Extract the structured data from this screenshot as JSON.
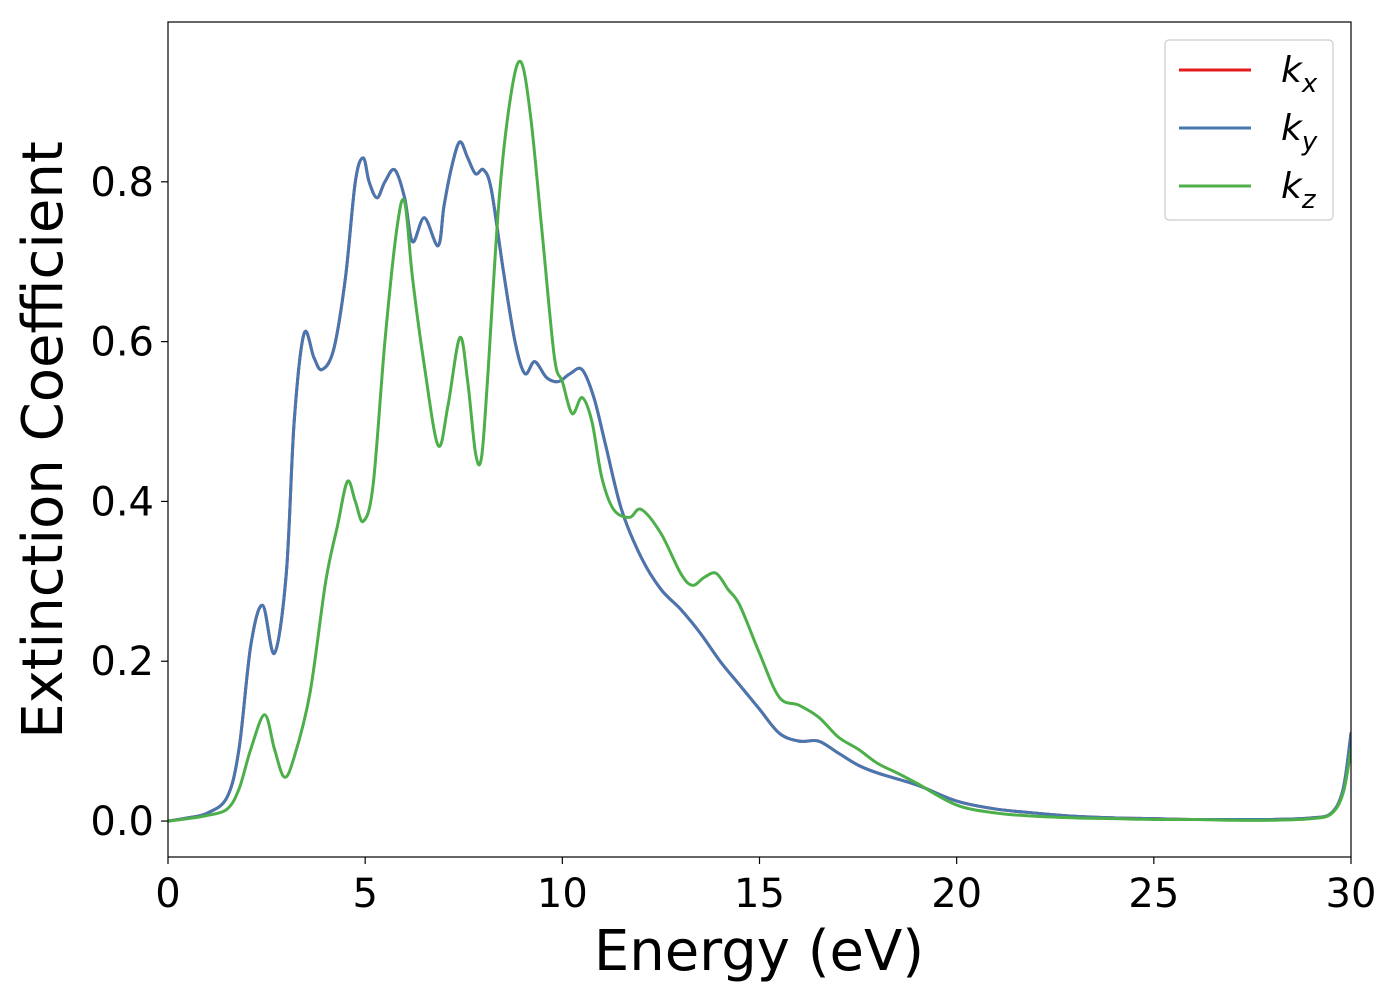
{
  "chart_data": {
    "type": "line",
    "title": "",
    "xlabel": "Energy (eV)",
    "ylabel": "Extinction Coefficient",
    "xlim": [
      0,
      30
    ],
    "ylim": [
      -0.045,
      1.0
    ],
    "xticks": [
      0,
      5,
      10,
      15,
      20,
      25,
      30
    ],
    "yticks": [
      0.0,
      0.2,
      0.4,
      0.6,
      0.8
    ],
    "xtick_labels": [
      "0",
      "5",
      "10",
      "15",
      "20",
      "25",
      "30"
    ],
    "ytick_labels": [
      "0.0",
      "0.2",
      "0.4",
      "0.6",
      "0.8"
    ],
    "grid": false,
    "legend_position": "top-right",
    "series": [
      {
        "name": "k",
        "subscript": "x",
        "color": "#e41a1c",
        "x": [
          0,
          0.5,
          1.0,
          1.5,
          1.8,
          2.1,
          2.4,
          2.7,
          3.0,
          3.2,
          3.45,
          3.7,
          3.9,
          4.2,
          4.5,
          4.75,
          4.95,
          5.1,
          5.3,
          5.5,
          5.75,
          6.0,
          6.2,
          6.5,
          6.85,
          7.0,
          7.2,
          7.4,
          7.6,
          7.8,
          8.0,
          8.2,
          8.5,
          8.8,
          9.05,
          9.3,
          9.6,
          9.9,
          10.2,
          10.5,
          10.8,
          11.1,
          11.5,
          12.0,
          12.5,
          13.0,
          13.5,
          14.0,
          14.5,
          15.0,
          15.5,
          16.0,
          16.5,
          17.0,
          17.5,
          18.0,
          19.0,
          20.0,
          21.0,
          22.0,
          23.0,
          24.0,
          25.0,
          26.0,
          27.0,
          28.0,
          29.0,
          29.5,
          29.8,
          30.0
        ],
        "y": [
          0.0,
          0.004,
          0.01,
          0.03,
          0.09,
          0.22,
          0.27,
          0.21,
          0.31,
          0.5,
          0.61,
          0.58,
          0.565,
          0.59,
          0.68,
          0.8,
          0.83,
          0.8,
          0.78,
          0.8,
          0.815,
          0.78,
          0.725,
          0.755,
          0.72,
          0.77,
          0.82,
          0.85,
          0.83,
          0.81,
          0.815,
          0.79,
          0.69,
          0.6,
          0.56,
          0.575,
          0.555,
          0.55,
          0.56,
          0.565,
          0.53,
          0.47,
          0.39,
          0.33,
          0.29,
          0.265,
          0.235,
          0.2,
          0.17,
          0.14,
          0.11,
          0.1,
          0.1,
          0.085,
          0.07,
          0.06,
          0.045,
          0.025,
          0.015,
          0.01,
          0.006,
          0.004,
          0.003,
          0.002,
          0.002,
          0.002,
          0.004,
          0.01,
          0.04,
          0.11
        ]
      },
      {
        "name": "k",
        "subscript": "y",
        "color": "#4777b0",
        "x": [
          0,
          0.5,
          1.0,
          1.5,
          1.8,
          2.1,
          2.4,
          2.7,
          3.0,
          3.2,
          3.45,
          3.7,
          3.9,
          4.2,
          4.5,
          4.75,
          4.95,
          5.1,
          5.3,
          5.5,
          5.75,
          6.0,
          6.2,
          6.5,
          6.85,
          7.0,
          7.2,
          7.4,
          7.6,
          7.8,
          8.0,
          8.2,
          8.5,
          8.8,
          9.05,
          9.3,
          9.6,
          9.9,
          10.2,
          10.5,
          10.8,
          11.1,
          11.5,
          12.0,
          12.5,
          13.0,
          13.5,
          14.0,
          14.5,
          15.0,
          15.5,
          16.0,
          16.5,
          17.0,
          17.5,
          18.0,
          19.0,
          20.0,
          21.0,
          22.0,
          23.0,
          24.0,
          25.0,
          26.0,
          27.0,
          28.0,
          29.0,
          29.5,
          29.8,
          30.0
        ],
        "y": [
          0.0,
          0.004,
          0.01,
          0.03,
          0.09,
          0.22,
          0.27,
          0.21,
          0.31,
          0.5,
          0.61,
          0.58,
          0.565,
          0.59,
          0.68,
          0.8,
          0.83,
          0.8,
          0.78,
          0.8,
          0.815,
          0.78,
          0.725,
          0.755,
          0.72,
          0.77,
          0.82,
          0.85,
          0.83,
          0.81,
          0.815,
          0.79,
          0.69,
          0.6,
          0.56,
          0.575,
          0.555,
          0.55,
          0.56,
          0.565,
          0.53,
          0.47,
          0.39,
          0.33,
          0.29,
          0.265,
          0.235,
          0.2,
          0.17,
          0.14,
          0.11,
          0.1,
          0.1,
          0.085,
          0.07,
          0.06,
          0.045,
          0.025,
          0.015,
          0.01,
          0.006,
          0.004,
          0.003,
          0.002,
          0.002,
          0.002,
          0.004,
          0.01,
          0.04,
          0.11
        ]
      },
      {
        "name": "k",
        "subscript": "z",
        "color": "#4daf4a",
        "x": [
          0,
          0.5,
          1.0,
          1.5,
          1.8,
          2.1,
          2.45,
          2.7,
          2.95,
          3.2,
          3.6,
          4.0,
          4.3,
          4.55,
          4.75,
          4.95,
          5.2,
          5.5,
          5.8,
          6.0,
          6.2,
          6.5,
          6.85,
          7.1,
          7.4,
          7.6,
          7.8,
          7.95,
          8.1,
          8.4,
          8.7,
          8.95,
          9.2,
          9.5,
          9.8,
          10.0,
          10.25,
          10.5,
          10.75,
          11.0,
          11.3,
          11.7,
          12.0,
          12.5,
          13.0,
          13.3,
          13.6,
          13.9,
          14.2,
          14.5,
          15.0,
          15.5,
          16.0,
          16.5,
          17.0,
          17.5,
          18.0,
          18.5,
          19.0,
          20.0,
          21.0,
          22.0,
          23.0,
          24.0,
          25.0,
          26.0,
          27.0,
          28.0,
          29.0,
          29.5,
          29.8,
          30.0
        ],
        "y": [
          0.0,
          0.003,
          0.007,
          0.015,
          0.04,
          0.09,
          0.133,
          0.09,
          0.055,
          0.08,
          0.16,
          0.3,
          0.37,
          0.425,
          0.4,
          0.375,
          0.42,
          0.6,
          0.74,
          0.775,
          0.68,
          0.57,
          0.47,
          0.52,
          0.605,
          0.55,
          0.46,
          0.455,
          0.55,
          0.78,
          0.91,
          0.95,
          0.88,
          0.73,
          0.58,
          0.55,
          0.51,
          0.53,
          0.5,
          0.43,
          0.39,
          0.38,
          0.39,
          0.36,
          0.31,
          0.295,
          0.305,
          0.31,
          0.29,
          0.27,
          0.21,
          0.155,
          0.145,
          0.13,
          0.105,
          0.09,
          0.072,
          0.06,
          0.047,
          0.02,
          0.01,
          0.006,
          0.004,
          0.003,
          0.002,
          0.002,
          0.001,
          0.001,
          0.003,
          0.009,
          0.035,
          0.09
        ]
      }
    ]
  }
}
